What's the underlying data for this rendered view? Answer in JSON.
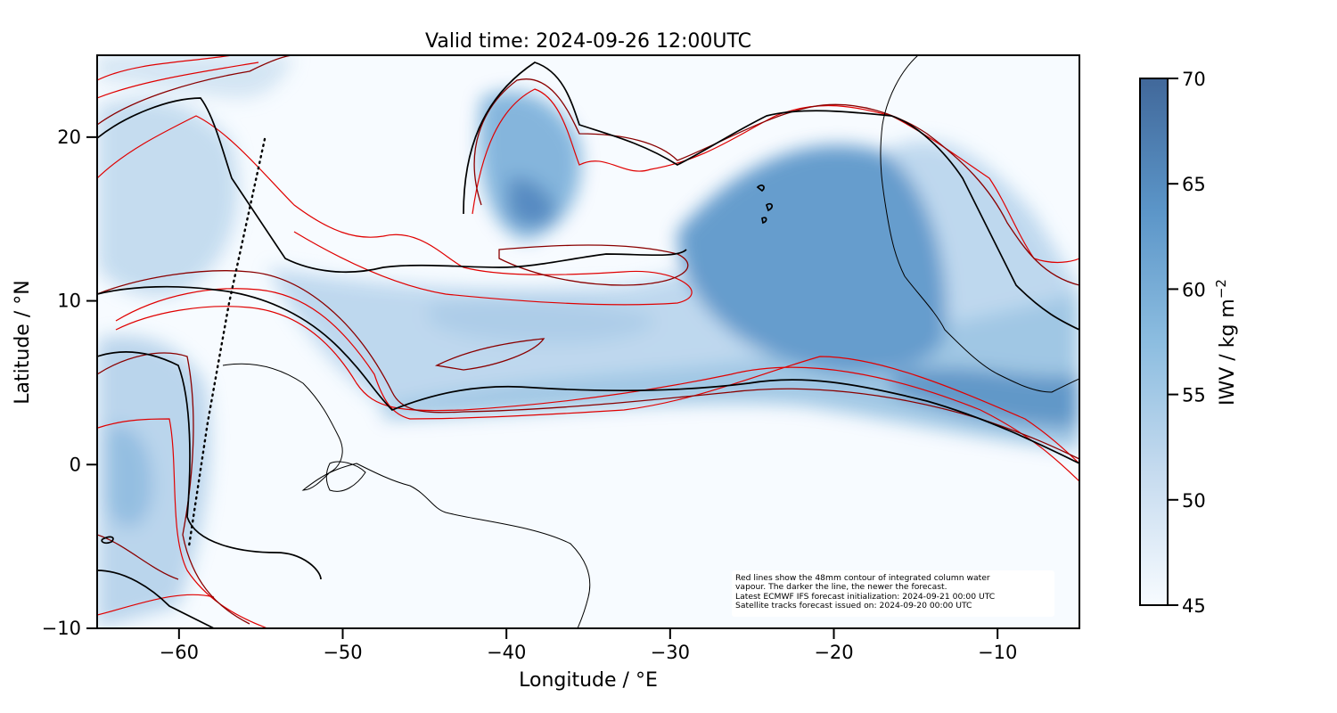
{
  "title": "Valid time: 2024-09-26 12:00UTC",
  "axes": {
    "xlabel": "Longitude / °E",
    "ylabel": "Latitude / °N",
    "xlim": [
      -65,
      -5
    ],
    "ylim": [
      -10,
      25
    ],
    "xticks": [
      -60,
      -50,
      -40,
      -30,
      -20,
      -10
    ],
    "yticks": [
      -10,
      0,
      10,
      20
    ]
  },
  "colorbar": {
    "label": "IWV / kg m",
    "label_superscript": "−2",
    "ticks": [
      45,
      50,
      55,
      60,
      65,
      70
    ],
    "range": [
      45,
      70
    ],
    "colors": [
      "#f7fbff",
      "#c6dbef",
      "#6baed6",
      "#4a7bb0",
      "#41689a"
    ]
  },
  "note_lines": [
    "Red lines show the 48mm contour of integrated column water",
    "vapour. The darker the line, the newer the forecast.",
    "Latest ECMWF IFS forecast initialization: 2024-09-21 00:00 UTC",
    "Satellite tracks forecast issued on: 2024-09-20 00:00 UTC"
  ],
  "colors": {
    "contour_old": "#e00000",
    "contour_mid": "#a00000",
    "contour_new": "#5a0000",
    "contour_latest": "#000000",
    "coastline": "#000000"
  },
  "satellite_track": [
    [
      -55,
      20
    ],
    [
      -57.2,
      10
    ],
    [
      -58.5,
      3
    ],
    [
      -59.6,
      -5
    ]
  ]
}
